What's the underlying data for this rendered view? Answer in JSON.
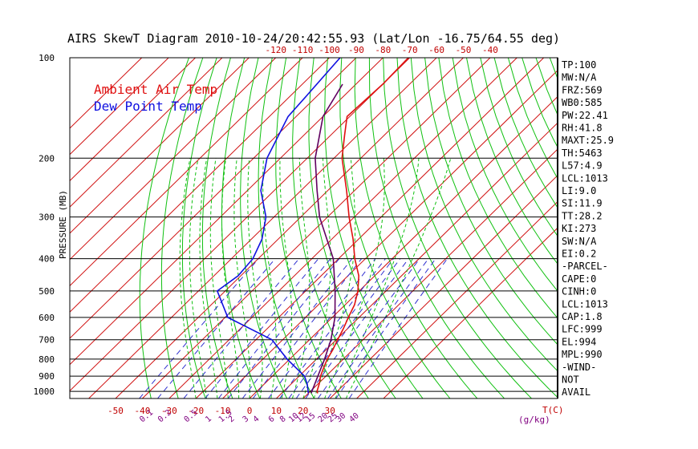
{
  "chart_data": {
    "type": "line",
    "title": "AIRS SkewT Diagram 2010-10-24/20:42:55.93 (Lat/Lon -16.75/64.55 deg)",
    "ylabel": "PRESSURE (MB)",
    "y_scale": "log-pressure",
    "ylim": [
      1050,
      100
    ],
    "pressure_ticks": [
      100,
      200,
      300,
      400,
      500,
      600,
      700,
      800,
      900,
      1000
    ],
    "bottom_temp_ticks": [
      -50,
      -40,
      -30,
      -20,
      -10,
      0,
      10,
      20,
      30
    ],
    "top_temp_ticks": [
      -120,
      -110,
      -100,
      -90,
      -80,
      -70,
      -60,
      -50,
      -40
    ],
    "mixing_ratio_labels": [
      "0.1",
      "0.2",
      "0.5",
      "1",
      "1.5",
      "2",
      "3",
      "4",
      "6",
      "8",
      "10",
      "12",
      "15",
      "20",
      "25",
      "30",
      "40"
    ],
    "bottom_unit_label": "T(C)",
    "mixing_ratio_unit": "(g/kg)",
    "legend": [
      "Ambient Air Temp",
      "Dew Point Temp"
    ],
    "colors": {
      "temperature": "#e01010",
      "dewpoint": "#1010e0",
      "parcel": "#600060",
      "isotherm": "#d01010",
      "dry_adiabat": "#10c010",
      "mixing_ratio": "#3030d0",
      "isobar": "#000000",
      "wind": "#000000"
    },
    "series": [
      {
        "name": "Ambient Air Temp",
        "points": [
          [
            100,
            -70.5
          ],
          [
            120,
            -70
          ],
          [
            150,
            -71
          ],
          [
            170,
            -65
          ],
          [
            200,
            -57
          ],
          [
            250,
            -43
          ],
          [
            300,
            -32
          ],
          [
            350,
            -22
          ],
          [
            400,
            -14
          ],
          [
            450,
            -6
          ],
          [
            500,
            -0.5
          ],
          [
            550,
            3.5
          ],
          [
            600,
            6
          ],
          [
            650,
            8.5
          ],
          [
            700,
            10.5
          ],
          [
            750,
            12.5
          ],
          [
            800,
            14
          ],
          [
            850,
            16
          ],
          [
            900,
            18
          ],
          [
            950,
            20.5
          ],
          [
            1000,
            22.5
          ],
          [
            1013,
            23.5
          ]
        ]
      },
      {
        "name": "Dew Point Temp",
        "points": [
          [
            100,
            -96
          ],
          [
            130,
            -94
          ],
          [
            150,
            -93
          ],
          [
            200,
            -85
          ],
          [
            250,
            -75
          ],
          [
            300,
            -63
          ],
          [
            350,
            -56
          ],
          [
            400,
            -52
          ],
          [
            450,
            -51
          ],
          [
            500,
            -53
          ],
          [
            600,
            -39
          ],
          [
            700,
            -14
          ],
          [
            800,
            -1
          ],
          [
            900,
            12
          ],
          [
            950,
            16
          ],
          [
            1013,
            20
          ]
        ]
      },
      {
        "points": [
          [
            120,
            -85
          ],
          [
            150,
            -80
          ],
          [
            200,
            -67
          ],
          [
            250,
            -54
          ],
          [
            300,
            -43
          ],
          [
            400,
            -22
          ],
          [
            500,
            -9
          ],
          [
            600,
            1
          ],
          [
            700,
            8
          ],
          [
            800,
            13
          ],
          [
            900,
            17
          ],
          [
            1013,
            21
          ]
        ]
      }
    ]
  },
  "indices": [
    "TP:100",
    "MW:N/A",
    "FRZ:569",
    "WB0:585",
    "PW:22.41",
    "RH:41.8",
    "MAXT:25.9",
    "TH:5463",
    "L57:4.9",
    "LCL:1013",
    "LI:9.0",
    "SI:11.9",
    "TT:28.2",
    "KI:273",
    "SW:N/A",
    "EI:0.2",
    "-PARCEL-",
    "CAPE:0",
    "CINH:0",
    "LCL:1013",
    "CAP:1.8",
    "LFC:999",
    "EL:994",
    "MPL:990",
    "-WIND-",
    "NOT",
    "AVAIL"
  ]
}
